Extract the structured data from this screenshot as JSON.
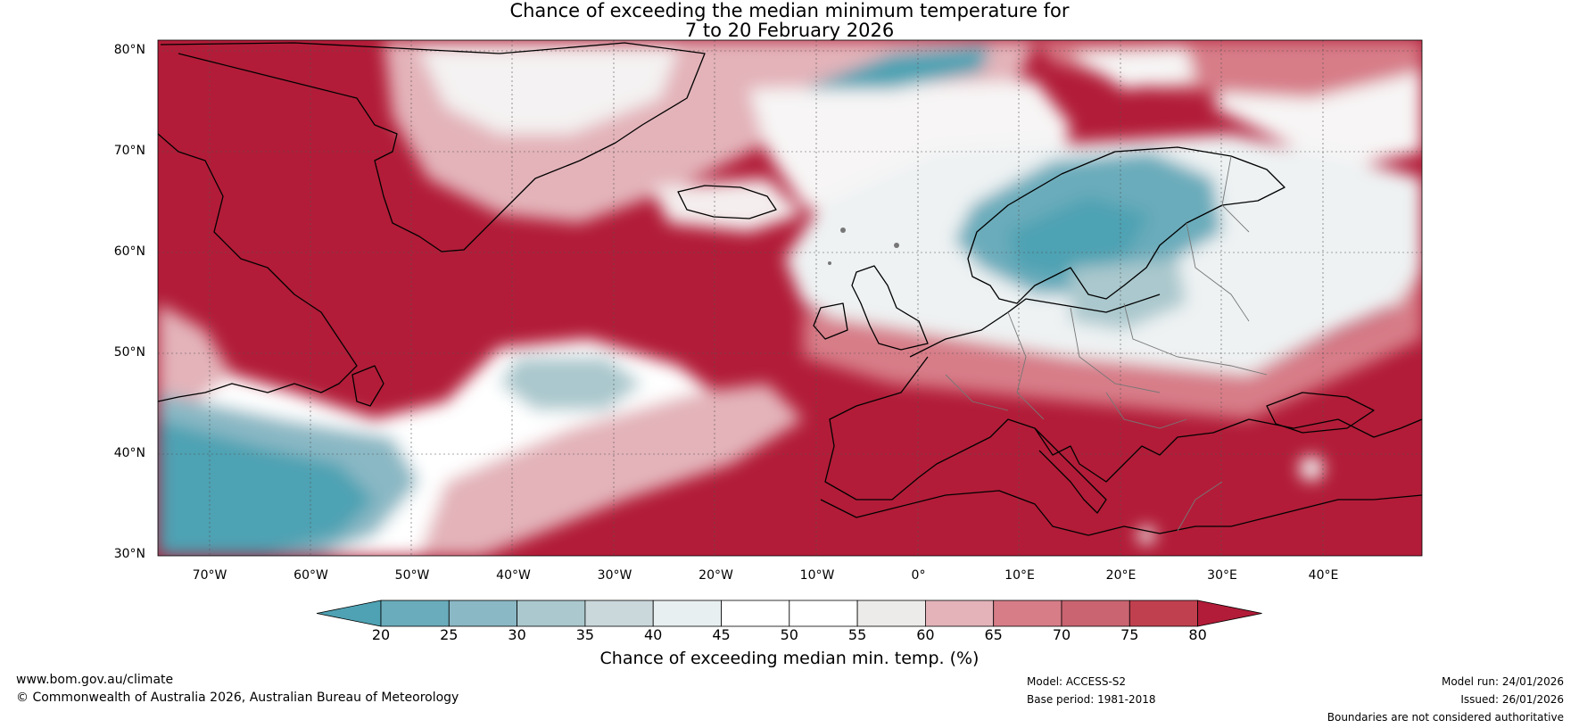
{
  "header": {
    "title_line1": "Chance of exceeding the median minimum temperature for",
    "title_line2": "7 to 20 February 2026"
  },
  "map": {
    "lat_labels": [
      "80°N",
      "70°N",
      "60°N",
      "50°N",
      "40°N",
      "30°N"
    ],
    "lon_labels": [
      "70°W",
      "60°W",
      "50°W",
      "40°W",
      "30°W",
      "20°W",
      "10°W",
      "0°",
      "10°E",
      "20°E",
      "30°E",
      "40°E"
    ]
  },
  "colorbar": {
    "ticks": [
      "20",
      "25",
      "30",
      "35",
      "40",
      "45",
      "50",
      "55",
      "60",
      "65",
      "70",
      "75",
      "80"
    ],
    "label": "Chance of exceeding median min. temp. (%)",
    "colors": [
      "#4ea2b3",
      "#6aacbb",
      "#8ab8c4",
      "#aac8cd",
      "#cad8db",
      "#e8eff0",
      "#ffffff",
      "#ffffff",
      "#ecebe9",
      "#e3b3b9",
      "#d77d88",
      "#c96470",
      "#c0404f",
      "#b21c38"
    ]
  },
  "footer": {
    "website": "www.bom.gov.au/climate",
    "copyright": "© Commonwealth of Australia 2026, Australian Bureau of Meteorology",
    "model": "Model: ACCESS-S2",
    "base_period": "Base period: 1981-2018",
    "model_run": "Model run: 24/01/2026",
    "issued": "Issued: 26/01/2026",
    "disclaimer": "Boundaries are not considered authoritative"
  }
}
